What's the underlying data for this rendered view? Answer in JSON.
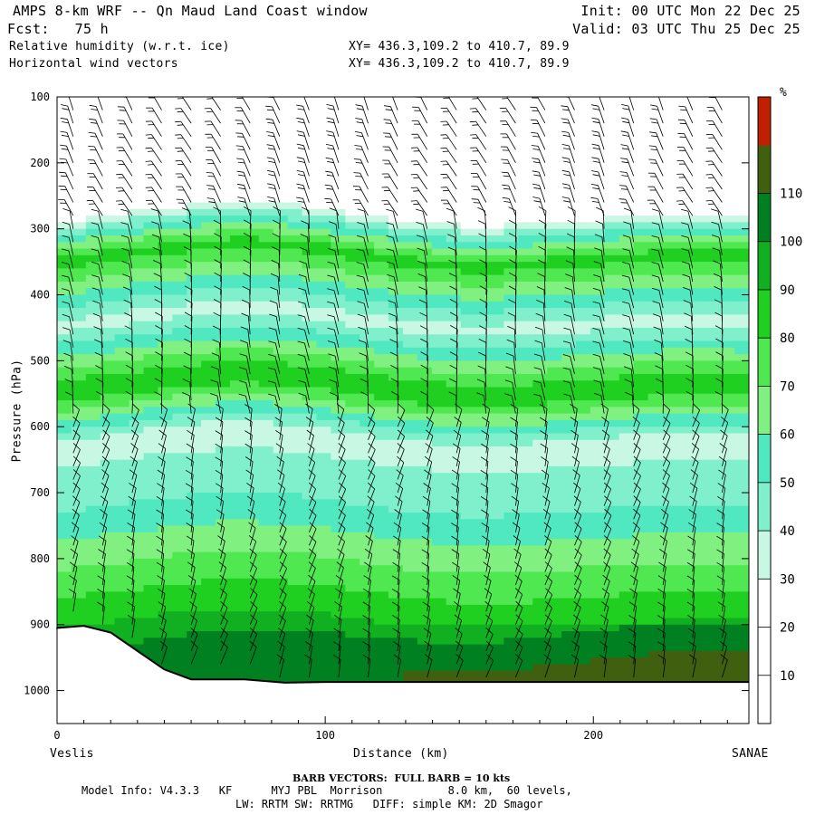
{
  "header": {
    "title": "AMPS 8-km WRF -- Qn Maud Land Coast window",
    "forecast": "Fcst:   75 h",
    "init": "Init: 00 UTC Mon 22 Dec 25",
    "valid": "Valid: 03 UTC Thu 25 Dec 25",
    "field1": "Relative humidity (w.r.t. ice)",
    "field2": "Horizontal wind vectors",
    "xy1": "XY= 436.3,109.2 to 410.7, 89.9",
    "xy2": "XY= 436.3,109.2 to 410.7, 89.9"
  },
  "footer": {
    "barb_note": "BARB VECTORS:  FULL BARB = 10 kts",
    "model_info": "Model Info: V4.3.3   KF      MYJ PBL  Morrison          8.0 km,  60 levels,",
    "model_info2": "LW: RRTM SW: RRTMG   DIFF: simple KM: 2D Smagor"
  },
  "colors": {
    "rh_levels": [
      "#ffffff",
      "#ffffff",
      "#ffffff",
      "#c8f8e4",
      "#80f0cc",
      "#50e8c0",
      "#80f080",
      "#50e850",
      "#20d020",
      "#10b020",
      "#008020",
      "#406010",
      "#c02000"
    ],
    "terrain": "#000000"
  },
  "chart_data": {
    "type": "heatmap",
    "title": "Relative humidity (w.r.t. ice)",
    "xlabel": "Distance (km)",
    "ylabel": "Pressure (hPa)",
    "xlim": [
      0,
      258
    ],
    "ylim": [
      1050,
      100
    ],
    "x_ticks": [
      0,
      100,
      200
    ],
    "y_ticks": [
      100,
      200,
      300,
      400,
      500,
      600,
      700,
      800,
      900,
      1000
    ],
    "x_endpoints": [
      "Veslis",
      "SANAE"
    ],
    "colorbar": {
      "unit": "%",
      "levels": [
        10,
        20,
        30,
        40,
        50,
        60,
        70,
        80,
        90,
        100,
        110
      ]
    },
    "rh_profile_approx": [
      {
        "p": 150,
        "rh": 0
      },
      {
        "p": 260,
        "rh": 10
      },
      {
        "p": 290,
        "rh": 40
      },
      {
        "p": 340,
        "rh": 85
      },
      {
        "p": 440,
        "rh": 35
      },
      {
        "p": 540,
        "rh": 90
      },
      {
        "p": 620,
        "rh": 35
      },
      {
        "p": 720,
        "rh": 50
      },
      {
        "p": 830,
        "rh": 75
      },
      {
        "p": 960,
        "rh": 105
      }
    ],
    "terrain_profile": [
      {
        "x": 0,
        "p": 905
      },
      {
        "x": 10,
        "p": 902
      },
      {
        "x": 20,
        "p": 912
      },
      {
        "x": 30,
        "p": 940
      },
      {
        "x": 40,
        "p": 968
      },
      {
        "x": 50,
        "p": 983
      },
      {
        "x": 70,
        "p": 983
      },
      {
        "x": 85,
        "p": 988
      },
      {
        "x": 100,
        "p": 987
      },
      {
        "x": 150,
        "p": 987
      },
      {
        "x": 200,
        "p": 987
      },
      {
        "x": 258,
        "p": 987
      }
    ],
    "wind_barbs": "northerly/northwesterly flow aloft, light and variable near surface"
  }
}
